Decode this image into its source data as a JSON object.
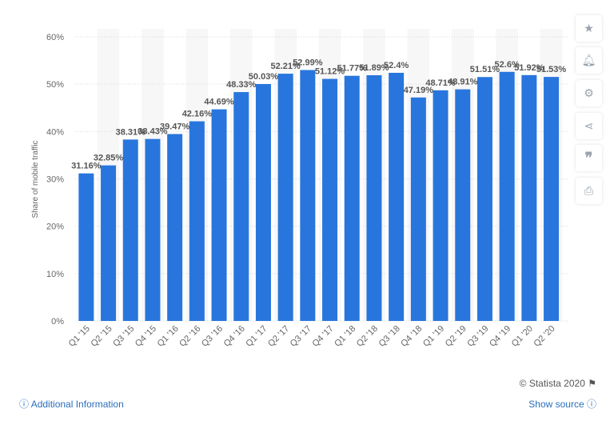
{
  "chart_data": {
    "type": "bar",
    "title": "",
    "xlabel": "",
    "ylabel": "Share of mobile traffic",
    "ylim": [
      0,
      60
    ],
    "yticks": [
      "0%",
      "10%",
      "20%",
      "30%",
      "40%",
      "50%",
      "60%"
    ],
    "grid": true,
    "categories": [
      "Q1 '15",
      "Q2 '15",
      "Q3 '15",
      "Q4 '15",
      "Q1 '16",
      "Q2 '16",
      "Q3 '16",
      "Q4 '16",
      "Q1 '17",
      "Q2 '17",
      "Q3 '17",
      "Q4 '17",
      "Q1 '18",
      "Q2 '18",
      "Q3 '18",
      "Q4 '18",
      "Q1 '19",
      "Q2 '19",
      "Q3 '19",
      "Q4 '19",
      "Q1 '20",
      "Q2 '20"
    ],
    "values": [
      31.16,
      32.85,
      38.31,
      38.43,
      39.47,
      42.16,
      44.69,
      48.33,
      50.03,
      52.21,
      52.99,
      51.12,
      51.77,
      51.89,
      52.4,
      47.19,
      48.71,
      48.91,
      51.51,
      52.6,
      51.92,
      51.53
    ],
    "labels": [
      "31.16%",
      "32.85%",
      "38.31%",
      "38.43%",
      "39.47%",
      "42.16%",
      "44.69%",
      "48.33%",
      "50.03%",
      "52.21%",
      "52.99%",
      "51.12%",
      "51.77%",
      "51.89%",
      "52.4%",
      "47.19%",
      "48.71%",
      "48.91%",
      "51.51%",
      "52.6%",
      "51.92%",
      "51.53%"
    ],
    "bar_color": "#2876dd"
  },
  "footer": {
    "copyright": "© Statista 2020",
    "additional_info": "Additional Information",
    "show_source": "Show source"
  },
  "sidebar": [
    "star-icon",
    "bell-icon",
    "gear-icon",
    "share-icon",
    "quote-icon",
    "print-icon"
  ]
}
